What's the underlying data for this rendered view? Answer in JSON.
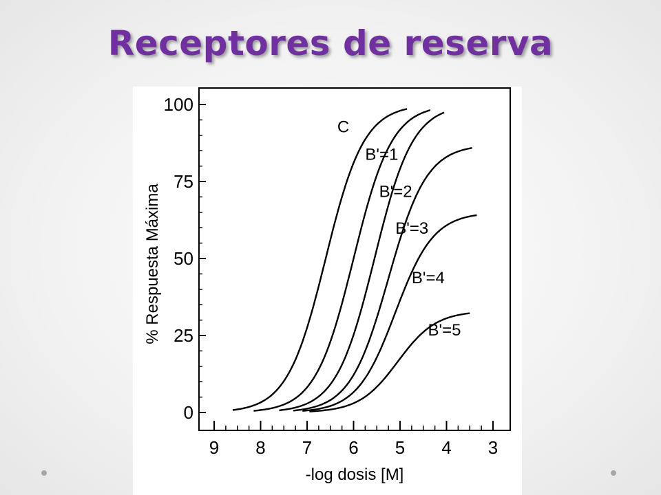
{
  "slide": {
    "title": "Receptores de reserva",
    "title_color": "#7030a0"
  },
  "chart_data": {
    "type": "line",
    "xlabel": "-log dosis [M]",
    "ylabel": "% Respuesta Máxima",
    "xlim": [
      9,
      3
    ],
    "ylim": [
      0,
      100
    ],
    "x_ticks": [
      9,
      8,
      7,
      6,
      5,
      4,
      3
    ],
    "y_ticks": [
      0,
      25,
      50,
      75,
      100
    ],
    "grid": false,
    "series": [
      {
        "name": "C",
        "emax": 100,
        "ec50": 6.6
      },
      {
        "name": "B'=1",
        "emax": 100,
        "ec50": 6.0
      },
      {
        "name": "B'=2",
        "emax": 100,
        "ec50": 5.55
      },
      {
        "name": "B'=3",
        "emax": 87,
        "ec50": 5.25
      },
      {
        "name": "B'=4",
        "emax": 65,
        "ec50": 5.1
      },
      {
        "name": "B'=5",
        "emax": 33,
        "ec50": 5.05
      }
    ]
  }
}
